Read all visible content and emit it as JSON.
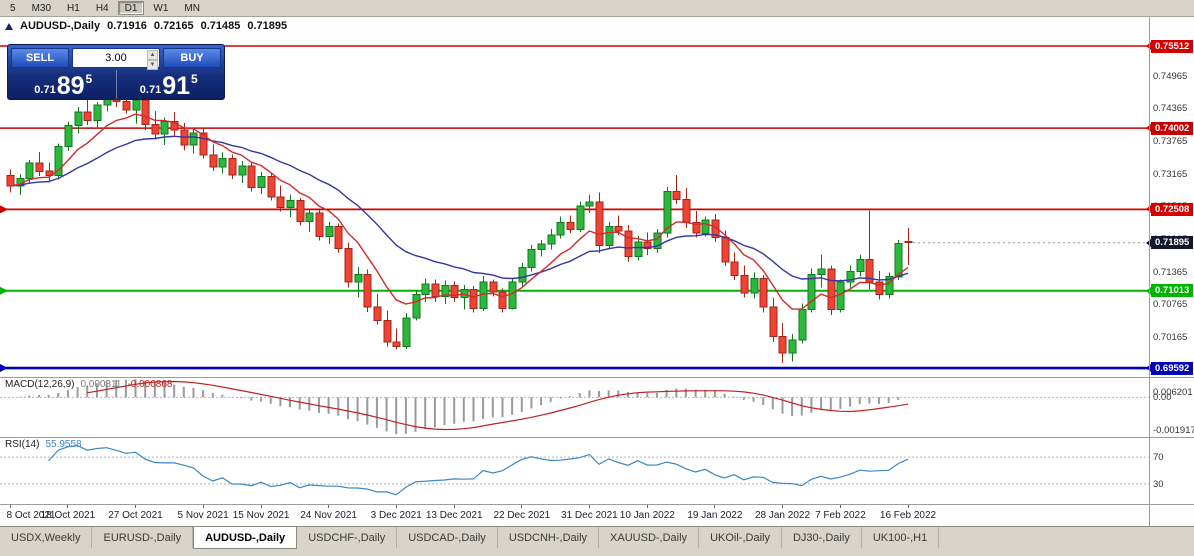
{
  "toolbar": {
    "timeframes": [
      "5",
      "M30",
      "H1",
      "H4",
      "D1",
      "W1",
      "MN"
    ],
    "active": "D1"
  },
  "header": {
    "symbol_title": "AUDUSD-,Daily",
    "open": "0.71916",
    "high": "0.72165",
    "low": "0.71485",
    "close": "0.71895"
  },
  "icons": {
    "volume_up": "▲",
    "volume_down": "▼"
  },
  "trade_panel": {
    "sell_label": "SELL",
    "buy_label": "BUY",
    "volume": "3.00",
    "sell_price_prefix": "0.71",
    "sell_price_big": "89",
    "sell_price_sup": "5",
    "buy_price_prefix": "0.71",
    "buy_price_big": "91",
    "buy_price_sup": "5"
  },
  "price_axis": {
    "ticks": [
      "0.74965",
      "0.74365",
      "0.73765",
      "0.73165",
      "0.72565",
      "0.71965",
      "0.71365",
      "0.70765",
      "0.70165",
      "0.69565"
    ],
    "current_price": "0.71895",
    "current_badge_color": "#14172b"
  },
  "hlines": [
    {
      "price": 0.75512,
      "label": "0.75512",
      "color": "#d40000",
      "width": 1.4,
      "left_marker": false
    },
    {
      "price": 0.74002,
      "label": "0.74002",
      "color": "#c60000",
      "width": 1.6,
      "left_marker": false
    },
    {
      "price": 0.72508,
      "label": "0.72508",
      "color": "#d40000",
      "width": 1.8,
      "left_marker": true
    },
    {
      "price": 0.71013,
      "label": "0.71013",
      "color": "#00b400",
      "width": 2.0,
      "left_marker": true
    },
    {
      "price": 0.69592,
      "label": "0.69592",
      "color": "#0000b4",
      "width": 2.6,
      "left_marker": true
    }
  ],
  "macd_panel": {
    "title": "MACD(12,26,9)",
    "value_main": "0.000311",
    "value_signal": "-0.000868",
    "ticks": [
      "0.006201",
      "0.00",
      "-0.001917"
    ],
    "params": {
      "fast": 12,
      "slow": 26,
      "signal": 9
    },
    "hist_color": "#9a9a9a",
    "signal_color": "#c22222"
  },
  "rsi_panel": {
    "title": "RSI(14)",
    "value": "55.9558",
    "levels": [
      70,
      30
    ],
    "line_color": "#3a87c8",
    "param": 14
  },
  "chart_data": {
    "type": "candlestick",
    "symbol": "AUDUSD",
    "timeframe": "Daily",
    "ylim": [
      0.69427,
      0.76045
    ],
    "up_color": "#2db83d",
    "down_color": "#ef4433",
    "up_stroke": "#0e7a1e",
    "down_stroke": "#a5251a",
    "ma_fast": {
      "period": 8,
      "color": "#d42a2a"
    },
    "ma_slow": {
      "period": 21,
      "color": "#3636a0"
    },
    "candles": [
      [
        0.7313,
        0.7324,
        0.7282,
        0.7294
      ],
      [
        0.7294,
        0.7316,
        0.7277,
        0.7308
      ],
      [
        0.7308,
        0.7342,
        0.73,
        0.7336
      ],
      [
        0.7336,
        0.7356,
        0.7312,
        0.7321
      ],
      [
        0.7321,
        0.7337,
        0.73,
        0.7313
      ],
      [
        0.7313,
        0.7372,
        0.7306,
        0.7366
      ],
      [
        0.7366,
        0.7412,
        0.7358,
        0.7405
      ],
      [
        0.7405,
        0.7439,
        0.739,
        0.743
      ],
      [
        0.743,
        0.7455,
        0.7406,
        0.7414
      ],
      [
        0.7414,
        0.7448,
        0.7401,
        0.7443
      ],
      [
        0.7443,
        0.747,
        0.7431,
        0.7461
      ],
      [
        0.7461,
        0.7478,
        0.7439,
        0.7449
      ],
      [
        0.7449,
        0.7468,
        0.7427,
        0.7434
      ],
      [
        0.7434,
        0.7458,
        0.7409,
        0.7452
      ],
      [
        0.7452,
        0.7461,
        0.7397,
        0.7407
      ],
      [
        0.7407,
        0.7432,
        0.7379,
        0.7389
      ],
      [
        0.7389,
        0.742,
        0.7369,
        0.7412
      ],
      [
        0.7412,
        0.743,
        0.7387,
        0.7397
      ],
      [
        0.7397,
        0.741,
        0.7359,
        0.7369
      ],
      [
        0.7369,
        0.74,
        0.7354,
        0.7391
      ],
      [
        0.7391,
        0.7401,
        0.7344,
        0.7351
      ],
      [
        0.7351,
        0.737,
        0.7321,
        0.7329
      ],
      [
        0.7329,
        0.7355,
        0.7317,
        0.7344
      ],
      [
        0.7344,
        0.7352,
        0.7307,
        0.7314
      ],
      [
        0.7314,
        0.734,
        0.7299,
        0.7331
      ],
      [
        0.7331,
        0.7338,
        0.7284,
        0.7291
      ],
      [
        0.7291,
        0.732,
        0.7279,
        0.7311
      ],
      [
        0.7311,
        0.7318,
        0.7267,
        0.7274
      ],
      [
        0.7274,
        0.7295,
        0.7247,
        0.7254
      ],
      [
        0.7254,
        0.7278,
        0.7237,
        0.7267
      ],
      [
        0.7267,
        0.7272,
        0.7221,
        0.7229
      ],
      [
        0.7229,
        0.7252,
        0.7209,
        0.7244
      ],
      [
        0.7244,
        0.725,
        0.7194,
        0.7201
      ],
      [
        0.7201,
        0.7228,
        0.7187,
        0.7219
      ],
      [
        0.7219,
        0.7225,
        0.7171,
        0.7179
      ],
      [
        0.7179,
        0.719,
        0.7107,
        0.7117
      ],
      [
        0.7117,
        0.7145,
        0.7089,
        0.7131
      ],
      [
        0.7131,
        0.714,
        0.7062,
        0.7071
      ],
      [
        0.7071,
        0.7095,
        0.7039,
        0.7047
      ],
      [
        0.7047,
        0.7065,
        0.6999,
        0.7007
      ],
      [
        0.7007,
        0.7032,
        0.6993,
        0.6999
      ],
      [
        0.6999,
        0.706,
        0.6994,
        0.7051
      ],
      [
        0.7051,
        0.7102,
        0.7047,
        0.7094
      ],
      [
        0.7094,
        0.7124,
        0.7081,
        0.7114
      ],
      [
        0.7114,
        0.7122,
        0.7081,
        0.7091
      ],
      [
        0.7091,
        0.712,
        0.7077,
        0.7111
      ],
      [
        0.7111,
        0.7118,
        0.7081,
        0.7089
      ],
      [
        0.7089,
        0.7112,
        0.7067,
        0.7104
      ],
      [
        0.7104,
        0.711,
        0.7061,
        0.7069
      ],
      [
        0.7069,
        0.7128,
        0.7064,
        0.7117
      ],
      [
        0.7117,
        0.7122,
        0.7091,
        0.7099
      ],
      [
        0.7099,
        0.7105,
        0.7061,
        0.7069
      ],
      [
        0.7069,
        0.7125,
        0.7067,
        0.7117
      ],
      [
        0.7117,
        0.7152,
        0.7109,
        0.7144
      ],
      [
        0.7144,
        0.7185,
        0.7137,
        0.7177
      ],
      [
        0.7177,
        0.7195,
        0.7164,
        0.7187
      ],
      [
        0.7187,
        0.7215,
        0.7177,
        0.7204
      ],
      [
        0.7204,
        0.7238,
        0.7197,
        0.7227
      ],
      [
        0.7227,
        0.724,
        0.7207,
        0.7214
      ],
      [
        0.7214,
        0.7265,
        0.7209,
        0.7257
      ],
      [
        0.7257,
        0.7278,
        0.7244,
        0.7264
      ],
      [
        0.7264,
        0.7282,
        0.7171,
        0.7184
      ],
      [
        0.7184,
        0.7228,
        0.7179,
        0.7219
      ],
      [
        0.7219,
        0.724,
        0.7204,
        0.7211
      ],
      [
        0.7211,
        0.7222,
        0.7154,
        0.7164
      ],
      [
        0.7164,
        0.7202,
        0.7157,
        0.7191
      ],
      [
        0.7191,
        0.7208,
        0.7167,
        0.7179
      ],
      [
        0.7179,
        0.7215,
        0.7171,
        0.7207
      ],
      [
        0.7207,
        0.7292,
        0.7199,
        0.7284
      ],
      [
        0.7284,
        0.7314,
        0.7261,
        0.7269
      ],
      [
        0.7269,
        0.729,
        0.7217,
        0.7227
      ],
      [
        0.7227,
        0.7248,
        0.7199,
        0.7207
      ],
      [
        0.7207,
        0.7238,
        0.7201,
        0.7231
      ],
      [
        0.7231,
        0.7242,
        0.7191,
        0.7199
      ],
      [
        0.7199,
        0.7212,
        0.7147,
        0.7154
      ],
      [
        0.7154,
        0.7172,
        0.7121,
        0.7129
      ],
      [
        0.7129,
        0.7148,
        0.7089,
        0.7097
      ],
      [
        0.7097,
        0.7135,
        0.7087,
        0.7124
      ],
      [
        0.7124,
        0.713,
        0.7061,
        0.7071
      ],
      [
        0.7071,
        0.7088,
        0.7007,
        0.7017
      ],
      [
        0.7017,
        0.7042,
        0.6968,
        0.6987
      ],
      [
        0.6987,
        0.7022,
        0.6971,
        0.7011
      ],
      [
        0.7011,
        0.7078,
        0.7004,
        0.7067
      ],
      [
        0.7067,
        0.7142,
        0.7061,
        0.7131
      ],
      [
        0.7131,
        0.7168,
        0.7107,
        0.7141
      ],
      [
        0.7141,
        0.7148,
        0.7057,
        0.7067
      ],
      [
        0.7067,
        0.7122,
        0.7061,
        0.7117
      ],
      [
        0.7117,
        0.7148,
        0.7107,
        0.7137
      ],
      [
        0.7137,
        0.7168,
        0.7127,
        0.7159
      ],
      [
        0.7159,
        0.7249,
        0.7104,
        0.7117
      ],
      [
        0.7117,
        0.7138,
        0.7085,
        0.7094
      ],
      [
        0.7094,
        0.7135,
        0.7087,
        0.7127
      ],
      [
        0.7127,
        0.7195,
        0.7121,
        0.7188
      ],
      [
        0.71916,
        0.72165,
        0.71485,
        0.71895
      ]
    ],
    "date_ticks": {
      "indices": [
        0,
        6,
        13,
        20,
        26,
        33,
        40,
        46,
        53,
        60,
        66,
        73,
        80,
        86,
        93
      ],
      "labels": [
        "8 Oct 2021",
        "18 Oct 2021",
        "27 Oct 2021",
        "5 Nov 2021",
        "15 Nov 2021",
        "24 Nov 2021",
        "3 Dec 2021",
        "13 Dec 2021",
        "22 Dec 2021",
        "31 Dec 2021",
        "10 Jan 2022",
        "19 Jan 2022",
        "28 Jan 2022",
        "7 Feb 2022",
        "16 Feb 2022"
      ]
    }
  },
  "tabs": {
    "items": [
      "USDX,Weekly",
      "EURUSD-,Daily",
      "AUDUSD-,Daily",
      "USDCHF-,Daily",
      "USDCAD-,Daily",
      "USDCNH-,Daily",
      "XAUUSD-,Daily",
      "UKOil-,Daily",
      "DJ30-,Daily",
      "UK100-,H1"
    ],
    "active": "AUDUSD-,Daily"
  }
}
